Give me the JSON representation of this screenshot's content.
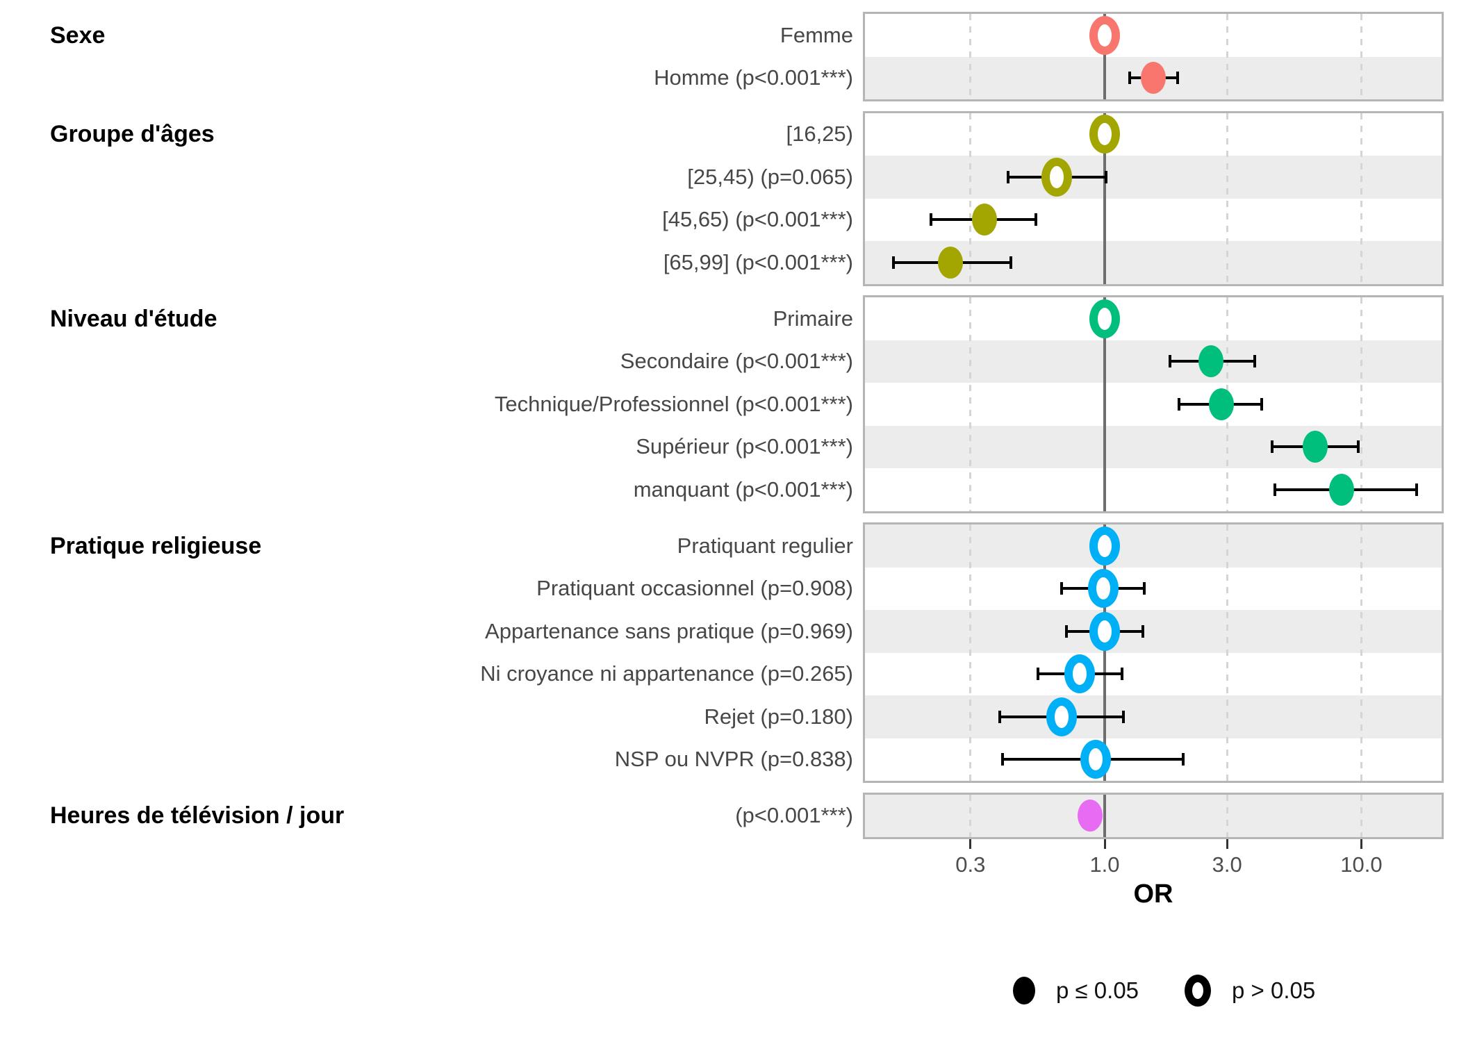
{
  "chart_data": {
    "type": "scatter",
    "subtype": "forest-plot-odds-ratios",
    "xlabel": "OR",
    "x_scale": "log10",
    "x_ticks": [
      0.3,
      1.0,
      3.0,
      10.0
    ],
    "x_tick_labels": [
      "0.3",
      "1.0",
      "3.0",
      "10.0"
    ],
    "x_range_approx": [
      0.115,
      20.6
    ],
    "reference_line": 1.0,
    "dashed_gridlines": [
      0.3,
      3.0,
      10.0
    ],
    "grid": "dashed vertical at ticks, solid dark line at OR=1",
    "legend_position": "bottom-right",
    "legend": [
      {
        "label": "p ≤ 0.05",
        "marker": "filled"
      },
      {
        "label": "p > 0.05",
        "marker": "open"
      }
    ],
    "groups": [
      {
        "name": "Sexe",
        "color": "#F8766D",
        "rows": [
          {
            "label": "Femme",
            "or": 1.0,
            "ci": null,
            "marker": "open"
          },
          {
            "label": "Homme (p<0.001***)",
            "or": 1.55,
            "ci": [
              1.25,
              1.93
            ],
            "marker": "filled"
          }
        ]
      },
      {
        "name": "Groupe d'âges",
        "color": "#A3A500",
        "rows": [
          {
            "label": "[16,25)",
            "or": 1.0,
            "ci": null,
            "marker": "open"
          },
          {
            "label": "[25,45) (p=0.065)",
            "or": 0.65,
            "ci": [
              0.42,
              1.01
            ],
            "marker": "open"
          },
          {
            "label": "[45,65) (p<0.001***)",
            "or": 0.34,
            "ci": [
              0.21,
              0.54
            ],
            "marker": "filled"
          },
          {
            "label": "[65,99] (p<0.001***)",
            "or": 0.25,
            "ci": [
              0.15,
              0.43
            ],
            "marker": "filled"
          }
        ]
      },
      {
        "name": "Niveau d'étude",
        "color": "#00BF7D",
        "rows": [
          {
            "label": "Primaire",
            "or": 1.0,
            "ci": null,
            "marker": "open"
          },
          {
            "label": "Secondaire (p<0.001***)",
            "or": 2.6,
            "ci": [
              1.8,
              3.85
            ],
            "marker": "filled"
          },
          {
            "label": "Technique/Professionnel (p<0.001***)",
            "or": 2.85,
            "ci": [
              1.95,
              4.1
            ],
            "marker": "filled"
          },
          {
            "label": "Supérieur (p<0.001***)",
            "or": 6.6,
            "ci": [
              4.5,
              9.75
            ],
            "marker": "filled"
          },
          {
            "label": "manquant (p<0.001***)",
            "or": 8.4,
            "ci": [
              4.6,
              16.4
            ],
            "marker": "filled"
          }
        ]
      },
      {
        "name": "Pratique religieuse",
        "color": "#00B0F6",
        "rows": [
          {
            "label": "Pratiquant regulier",
            "or": 1.0,
            "ci": null,
            "marker": "open"
          },
          {
            "label": "Pratiquant occasionnel (p=0.908)",
            "or": 0.99,
            "ci": [
              0.68,
              1.43
            ],
            "marker": "open"
          },
          {
            "label": "Appartenance sans pratique (p=0.969)",
            "or": 1.0,
            "ci": [
              0.71,
              1.41
            ],
            "marker": "open"
          },
          {
            "label": "Ni croyance ni appartenance (p=0.265)",
            "or": 0.8,
            "ci": [
              0.55,
              1.17
            ],
            "marker": "open"
          },
          {
            "label": "Rejet (p=0.180)",
            "or": 0.68,
            "ci": [
              0.39,
              1.18
            ],
            "marker": "open"
          },
          {
            "label": "NSP ou NVPR (p=0.838)",
            "or": 0.92,
            "ci": [
              0.4,
              2.02
            ],
            "marker": "open"
          }
        ]
      },
      {
        "name": "Heures de télévision / jour",
        "color": "#E76BF3",
        "rows": [
          {
            "label": "(p<0.001***)",
            "or": 0.88,
            "ci": null,
            "marker": "filled"
          }
        ]
      }
    ]
  },
  "style_colors": {
    "stripe_shaded": "#ECECEC",
    "panel_border": "#B5B5B5",
    "reference_line": "#6E6E6E",
    "dashed_gridline": "#D5D5D5",
    "error_bar": "#000000",
    "row_label_text": "#474747",
    "tick_text": "#4D4D4D",
    "legend_marker": "#000000"
  }
}
